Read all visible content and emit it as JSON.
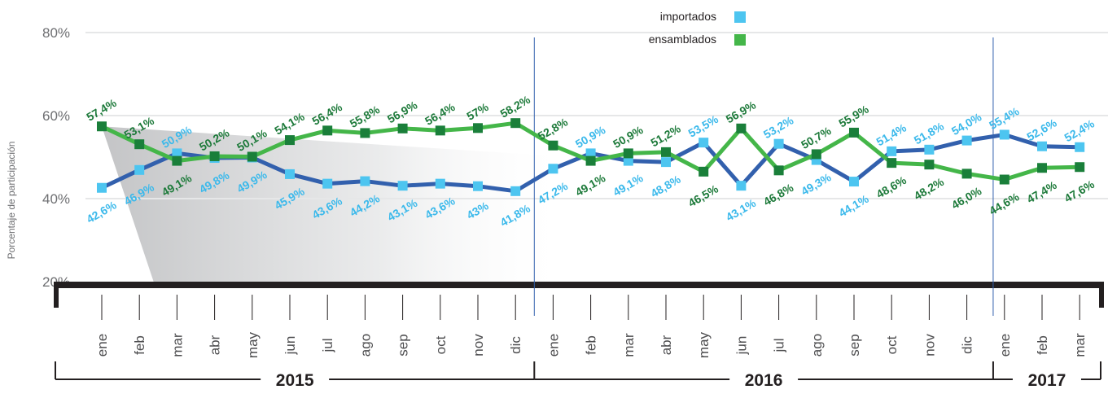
{
  "chart_data": {
    "type": "line",
    "ylabel": "Porcentaje de participación",
    "ylim": [
      20,
      80
    ],
    "y_ticks": [
      "20%",
      "40%",
      "60%",
      "80%"
    ],
    "grid": true,
    "legend_position": "top-center",
    "categories": [
      "ene",
      "feb",
      "mar",
      "abr",
      "may",
      "jun",
      "jul",
      "ago",
      "sep",
      "oct",
      "nov",
      "dic",
      "ene",
      "feb",
      "mar",
      "abr",
      "may",
      "jun",
      "jul",
      "ago",
      "sep",
      "oct",
      "nov",
      "dic",
      "ene",
      "feb",
      "mar"
    ],
    "years": [
      {
        "label": "2015",
        "months": 12
      },
      {
        "label": "2016",
        "months": 12
      },
      {
        "label": "2017",
        "months": 3
      }
    ],
    "series": [
      {
        "name": "importados",
        "color": "#4dc5f0",
        "line_color": "#3260ad",
        "values": [
          42.6,
          46.9,
          50.9,
          49.8,
          49.9,
          45.9,
          43.6,
          44.2,
          43.1,
          43.6,
          43,
          41.8,
          47.2,
          50.9,
          49.1,
          48.8,
          53.5,
          43.1,
          53.2,
          49.3,
          44.1,
          51.4,
          51.8,
          54.0,
          55.4,
          52.6,
          52.4
        ],
        "labels": [
          "42,6%",
          "46,9%",
          "50,9%",
          "49,8%",
          "49,9%",
          "45,9%",
          "43,6%",
          "44,2%",
          "43,1%",
          "43,6%",
          "43%",
          "41,8%",
          "47,2%",
          "50,9%",
          "49,1%",
          "48,8%",
          "53,5%",
          "43,1%",
          "53,2%",
          "49,3%",
          "44,1%",
          "51,4%",
          "51,8%",
          "54,0%",
          "55,4%",
          "52,6%",
          "52,4%"
        ]
      },
      {
        "name": "ensamblados",
        "color": "#44b649",
        "line_color": "#44b649",
        "values": [
          57.4,
          53.1,
          49.1,
          50.2,
          50.1,
          54.1,
          56.4,
          55.8,
          56.9,
          56.4,
          57,
          58.2,
          52.8,
          49.1,
          50.9,
          51.2,
          46.5,
          56.9,
          46.8,
          50.7,
          55.9,
          48.6,
          48.2,
          46.0,
          44.6,
          47.4,
          47.6
        ],
        "labels": [
          "57,4%",
          "53,1%",
          "49,1%",
          "50,2%",
          "50,1%",
          "54,1%",
          "56,4%",
          "55,8%",
          "56,9%",
          "56,4%",
          "57%",
          "58,2%",
          "52,8%",
          "49,1%",
          "50,9%",
          "51,2%",
          "46,5%",
          "56,9%",
          "46,8%",
          "50,7%",
          "55,9%",
          "48,6%",
          "48,2%",
          "46,0%",
          "44,6%",
          "47,4%",
          "47,6%"
        ]
      }
    ],
    "label_colors": {
      "importados": "#3bb9eb",
      "ensamblados": "#1d7a3a"
    }
  }
}
